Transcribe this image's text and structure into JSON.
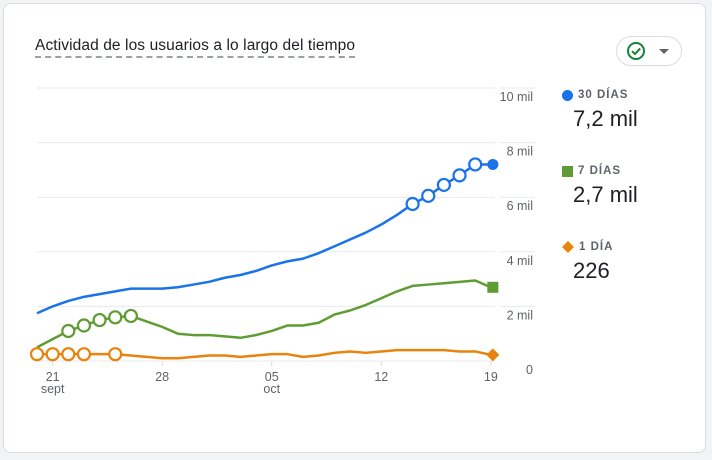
{
  "card": {
    "title": "Actividad de los usuarios a lo largo del tiempo",
    "status_icon": "check-circle-icon",
    "dropdown_icon": "caret-down-icon"
  },
  "legend": [
    {
      "label": "30 DÍAS",
      "value": "7,2 mil",
      "color": "#1a73e8",
      "marker": "circle"
    },
    {
      "label": "7 DÍAS",
      "value": "2,7 mil",
      "color": "#5f9c34",
      "marker": "square"
    },
    {
      "label": "1 DÍA",
      "value": "226",
      "color": "#e8830c",
      "marker": "diamond"
    }
  ],
  "axes": {
    "y_ticks": [
      "10 mil",
      "8 mil",
      "6 mil",
      "4 mil",
      "2 mil",
      "0"
    ],
    "x_ticks": [
      {
        "day": "21",
        "month": "sept"
      },
      {
        "day": "28",
        "month": ""
      },
      {
        "day": "05",
        "month": "oct"
      },
      {
        "day": "12",
        "month": ""
      },
      {
        "day": "19",
        "month": ""
      }
    ]
  },
  "chart_data": {
    "type": "line",
    "title": "Actividad de los usuarios a lo largo del tiempo",
    "xlabel": "",
    "ylabel": "",
    "ylim": [
      0,
      10000
    ],
    "grid": true,
    "legend_position": "right",
    "x": [
      "20 sept",
      "21 sept",
      "22 sept",
      "23 sept",
      "24 sept",
      "25 sept",
      "26 sept",
      "27 sept",
      "28 sept",
      "29 sept",
      "30 sept",
      "01 oct",
      "02 oct",
      "03 oct",
      "04 oct",
      "05 oct",
      "06 oct",
      "07 oct",
      "08 oct",
      "09 oct",
      "10 oct",
      "11 oct",
      "12 oct",
      "13 oct",
      "14 oct",
      "15 oct",
      "16 oct",
      "17 oct",
      "18 oct",
      "19 oct"
    ],
    "x_tick_labels": [
      "21 sept",
      "28",
      "05 oct",
      "12",
      "19"
    ],
    "y_tick_labels": [
      "0",
      "2 mil",
      "4 mil",
      "6 mil",
      "8 mil",
      "10 mil"
    ],
    "series": [
      {
        "name": "30 DÍAS",
        "color": "#1a73e8",
        "summary": "7,2 mil",
        "values": [
          1750,
          2000,
          2200,
          2350,
          2450,
          2550,
          2650,
          2650,
          2650,
          2700,
          2800,
          2900,
          3050,
          3150,
          3300,
          3500,
          3650,
          3750,
          3950,
          4200,
          4450,
          4700,
          5000,
          5350,
          5750,
          6050,
          6450,
          6800,
          7200,
          7200
        ]
      },
      {
        "name": "7 DÍAS",
        "color": "#5f9c34",
        "summary": "2,7 mil",
        "values": [
          500,
          800,
          1100,
          1300,
          1500,
          1600,
          1650,
          1450,
          1250,
          1000,
          950,
          950,
          900,
          850,
          950,
          1100,
          1300,
          1300,
          1400,
          1700,
          1850,
          2050,
          2300,
          2550,
          2750,
          2800,
          2850,
          2900,
          2950,
          2700
        ]
      },
      {
        "name": "1 DÍA",
        "color": "#e8830c",
        "summary": "226",
        "values": [
          250,
          250,
          250,
          250,
          250,
          250,
          200,
          150,
          100,
          100,
          150,
          200,
          200,
          150,
          200,
          250,
          250,
          150,
          200,
          300,
          350,
          300,
          350,
          400,
          400,
          400,
          400,
          350,
          350,
          226
        ]
      }
    ],
    "annotations": [
      "30 DÍAS: 7,2 mil",
      "7 DÍAS: 2,7 mil",
      "1 DÍA: 226"
    ]
  }
}
